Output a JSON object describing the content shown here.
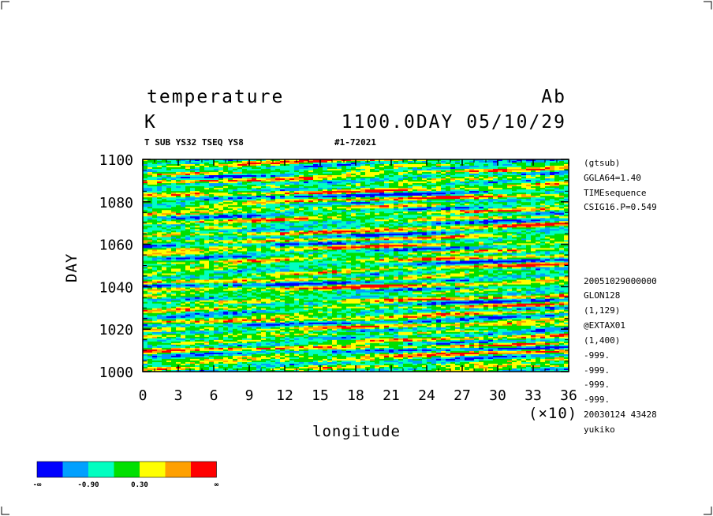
{
  "header": {
    "var_name": "temperature",
    "exp_label": "Ab",
    "units": "K",
    "time_stamp": "1100.0DAY 05/10/29",
    "run_info": "T SUB YS32 TSEQ YS8",
    "range_info": "#1-72021"
  },
  "side_info": [
    "(gtsub)",
    "GGLA64=1.40",
    "TIMEsequence",
    "CSIG16.P=0.549",
    "20051029000000",
    "GLON128",
    "(1,129)",
    "@EXTAX01",
    "(1,400)",
    "-999.",
    "-999.",
    "-999.",
    "-999.",
    "20030124  43428",
    "yukiko"
  ],
  "chart_data": {
    "type": "heatmap",
    "title": "temperature",
    "xlabel": "longitude",
    "ylabel": "DAY",
    "x_multiplier_label": "(×10)",
    "xlim": [
      0,
      36
    ],
    "ylim": [
      1000,
      1100
    ],
    "x_ticks": [
      "0",
      "3",
      "6",
      "9",
      "12",
      "15",
      "18",
      "21",
      "24",
      "27",
      "30",
      "33",
      "36"
    ],
    "y_ticks": [
      "1000",
      "1020",
      "1040",
      "1060",
      "1080",
      "1100"
    ],
    "legend": {
      "colors": [
        "#0000ff",
        "#00a0ff",
        "#00ffc0",
        "#00e000",
        "#ffff00",
        "#ffa000",
        "#ff0000"
      ],
      "labels": [
        "-∞",
        "-0.90",
        "0.30",
        "∞"
      ]
    }
  }
}
